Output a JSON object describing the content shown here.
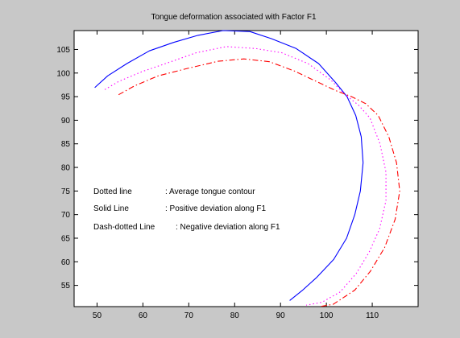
{
  "chart_data": {
    "type": "line",
    "title": "Tongue deformation associated with Factor F1",
    "xlabel": "",
    "ylabel": "",
    "xlim": [
      45,
      120
    ],
    "ylim": [
      50.5,
      109
    ],
    "grid": false,
    "x_ticks": [
      50,
      60,
      70,
      80,
      90,
      100,
      110
    ],
    "y_ticks": [
      55,
      60,
      65,
      70,
      75,
      80,
      85,
      90,
      95,
      100,
      105
    ],
    "annotations": [
      {
        "label": "Dotted line",
        "text": ": Average tongue contour"
      },
      {
        "label": "Solid Line",
        "text": ": Positive deviation along F1"
      },
      {
        "label": "Dash-dotted Line",
        "text": ": Negative deviation along F1"
      }
    ],
    "series": [
      {
        "style": "solid",
        "color": "#0000ff",
        "points": [
          [
            49.5,
            96.9
          ],
          [
            52.3,
            99.4
          ],
          [
            56.5,
            102.0
          ],
          [
            61.4,
            104.7
          ],
          [
            66.7,
            106.5
          ],
          [
            72.0,
            108.0
          ],
          [
            77.5,
            109.0
          ],
          [
            83.3,
            108.8
          ],
          [
            88.0,
            107.3
          ],
          [
            93.4,
            105.2
          ],
          [
            98.3,
            102.0
          ],
          [
            102.0,
            98.0
          ],
          [
            104.5,
            95.0
          ],
          [
            106.4,
            91.0
          ],
          [
            107.6,
            86.5
          ],
          [
            108.0,
            81.0
          ],
          [
            107.4,
            75.0
          ],
          [
            106.2,
            70.0
          ],
          [
            104.4,
            65.0
          ],
          [
            101.6,
            60.5
          ],
          [
            97.8,
            56.6
          ],
          [
            94.7,
            53.9
          ],
          [
            92.0,
            51.8
          ]
        ]
      },
      {
        "style": "dotted",
        "color": "#ff00ff",
        "points": [
          [
            51.7,
            96.5
          ],
          [
            54.7,
            98.2
          ],
          [
            59.8,
            100.3
          ],
          [
            65.5,
            102.2
          ],
          [
            71.6,
            104.3
          ],
          [
            78.2,
            105.6
          ],
          [
            84.6,
            105.2
          ],
          [
            90.3,
            104.3
          ],
          [
            96.0,
            102.0
          ],
          [
            101.0,
            98.5
          ],
          [
            104.0,
            95.5
          ],
          [
            107.0,
            93.2
          ],
          [
            109.5,
            90.5
          ],
          [
            111.7,
            85.0
          ],
          [
            113.0,
            79.0
          ],
          [
            113.0,
            73.0
          ],
          [
            111.6,
            67.0
          ],
          [
            109.3,
            62.0
          ],
          [
            106.5,
            57.5
          ],
          [
            103.0,
            53.6
          ],
          [
            99.0,
            51.4
          ],
          [
            95.6,
            50.8
          ]
        ]
      },
      {
        "style": "dashdot",
        "color": "#ff0000",
        "points": [
          [
            54.7,
            95.4
          ],
          [
            58.2,
            97.3
          ],
          [
            63.3,
            99.4
          ],
          [
            69.8,
            101.0
          ],
          [
            76.4,
            102.5
          ],
          [
            82.0,
            103.0
          ],
          [
            87.6,
            102.4
          ],
          [
            93.1,
            100.4
          ],
          [
            98.3,
            98.0
          ],
          [
            102.0,
            96.3
          ],
          [
            105.5,
            95.0
          ],
          [
            108.6,
            93.5
          ],
          [
            111.3,
            91.0
          ],
          [
            113.6,
            86.5
          ],
          [
            115.3,
            81.0
          ],
          [
            116.0,
            75.0
          ],
          [
            115.0,
            69.0
          ],
          [
            112.7,
            63.0
          ],
          [
            109.6,
            58.0
          ],
          [
            106.2,
            54.0
          ],
          [
            101.5,
            51.0
          ],
          [
            98.5,
            50.5
          ]
        ]
      }
    ]
  }
}
